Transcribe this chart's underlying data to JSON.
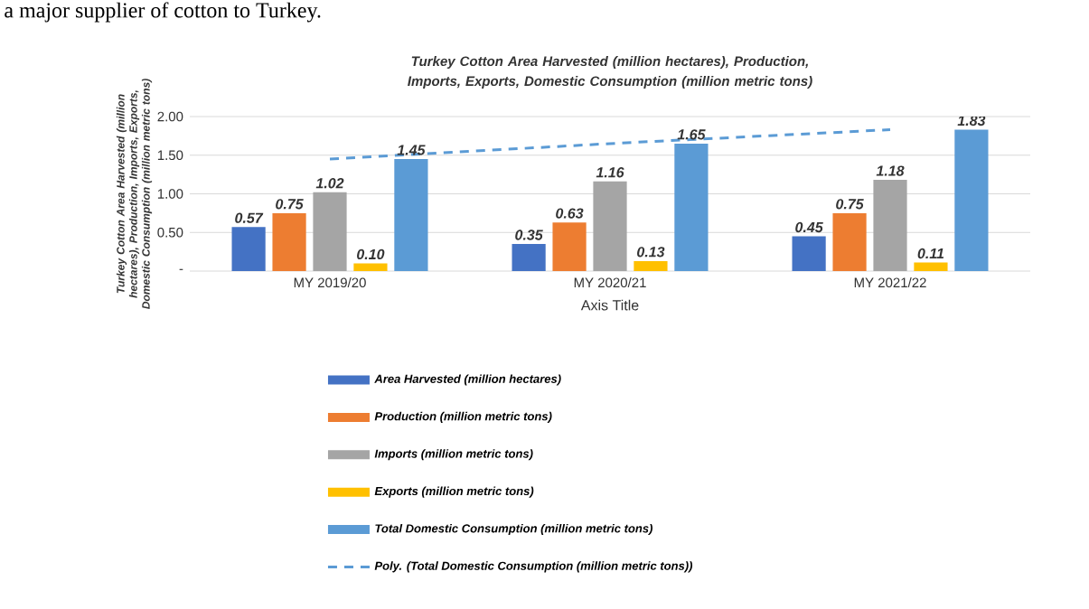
{
  "chart_data": {
    "type": "bar",
    "title": "Turkey  Cotton Area Harvested (million hectares), Production, Imports, Exports, Domestic Consumption (million metric tons)",
    "annotations": [
      "a major supplier of cotton to Turkey."
    ],
    "xlabel": "Axis Title",
    "ylabel": "Turkey Cotton Area Harvested (million hectares), Production, Imports, Exports, Domestic Consumption (million metric tons)",
    "categories": [
      "MY 2019/20",
      "MY 2020/21",
      "MY 2021/22"
    ],
    "series": [
      {
        "name": "Area Harvested (million hectares)",
        "color": "#4472c4",
        "values": [
          0.57,
          0.35,
          0.45
        ],
        "value_labels": [
          "0.57",
          "0.35",
          "0.45"
        ]
      },
      {
        "name": "Production (million metric tons)",
        "color": "#ed7d31",
        "values": [
          0.75,
          0.63,
          0.75
        ],
        "value_labels": [
          "0.75",
          "0.63",
          "0.75"
        ]
      },
      {
        "name": "Imports (million metric tons)",
        "color": "#a5a5a5",
        "values": [
          1.02,
          1.16,
          1.18
        ],
        "value_labels": [
          "1.02",
          "1.16",
          "1.18"
        ]
      },
      {
        "name": "Exports (million metric tons)",
        "color": "#ffc000",
        "values": [
          0.1,
          0.13,
          0.11
        ],
        "value_labels": [
          "0.10",
          "0.13",
          "0.11"
        ]
      },
      {
        "name": "Total Domestic Consumption (million metric tons)",
        "color": "#5b9bd5",
        "values": [
          1.45,
          1.65,
          1.83
        ],
        "value_labels": [
          "1.45",
          "1.65",
          "1.83"
        ]
      },
      {
        "name": "Poly. (Total Domestic Consumption (million metric tons))",
        "type": "line",
        "line_style": "dashed",
        "color": "#5b9bd5",
        "values": [
          1.45,
          1.65,
          1.83
        ]
      }
    ],
    "ylim": [
      0,
      2
    ],
    "yticks": [
      {
        "value": 0,
        "label": "-"
      },
      {
        "value": 0.5,
        "label": "0.50"
      },
      {
        "value": 1,
        "label": "1.00"
      },
      {
        "value": 1.5,
        "label": "1.50"
      },
      {
        "value": 2,
        "label": "2.00"
      }
    ],
    "grid": "y",
    "legend": "bottom"
  }
}
